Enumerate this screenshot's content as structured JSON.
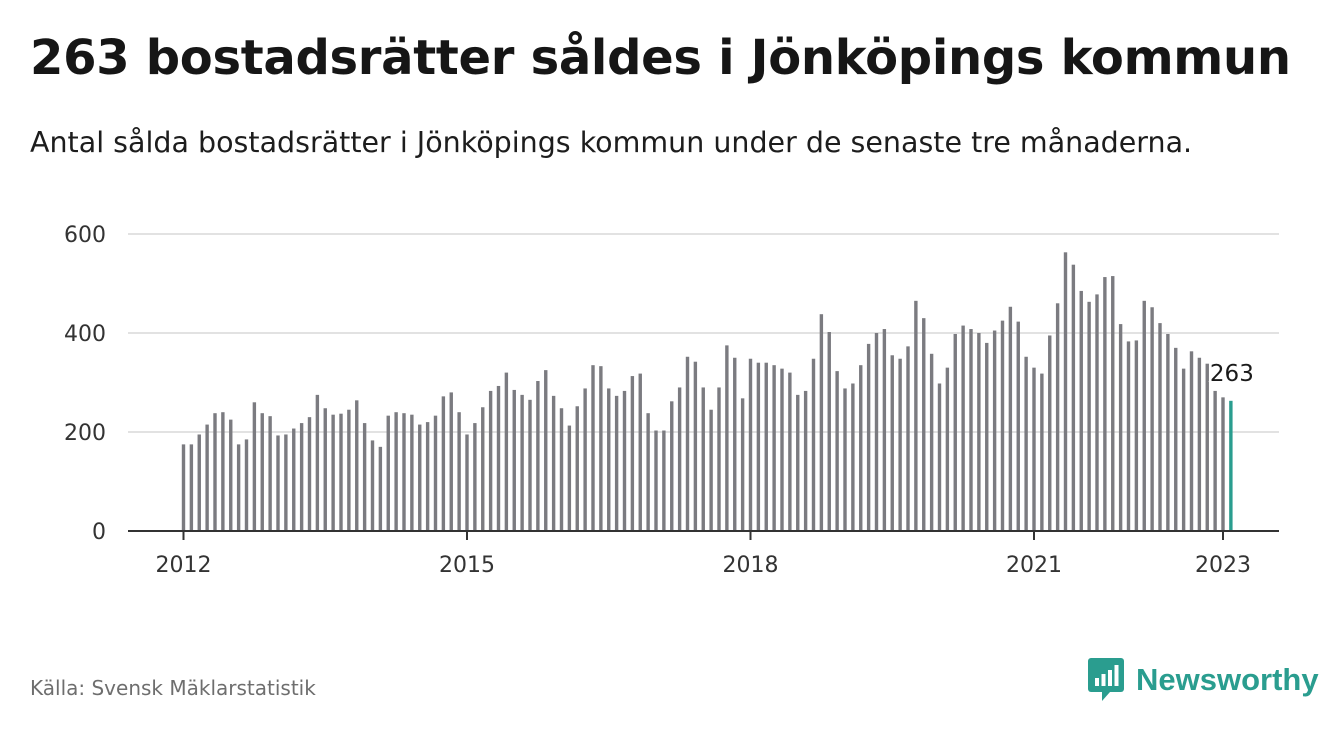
{
  "header": {
    "title": "263 bostadsrätter såldes i Jönköpings kommun",
    "subtitle": "Antal sålda bostadsrätter i Jönköpings kommun under de senaste tre månaderna."
  },
  "footer": {
    "source": "Källa: Svensk Mäklarstatistik",
    "brand": "Newsworthy",
    "brand_icon": "bar-chart-speech-bubble-icon"
  },
  "colors": {
    "bar": "#7b7b80",
    "highlight": "#2a9d8f",
    "grid": "#d9d9d9",
    "axis": "#333333"
  },
  "chart_data": {
    "type": "bar",
    "x_start": "2012-01",
    "x_tick_labels": [
      "2012",
      "2015",
      "2018",
      "2021",
      "2023"
    ],
    "ylim": [
      0,
      600
    ],
    "y_ticks": [
      0,
      200,
      400,
      600
    ],
    "grid": true,
    "highlight_label": "263",
    "values": [
      175,
      175,
      195,
      215,
      238,
      240,
      225,
      175,
      185,
      260,
      238,
      232,
      193,
      195,
      207,
      218,
      230,
      275,
      248,
      235,
      237,
      245,
      264,
      218,
      183,
      170,
      233,
      240,
      238,
      235,
      215,
      220,
      233,
      272,
      280,
      240,
      195,
      218,
      250,
      283,
      293,
      320,
      285,
      275,
      265,
      303,
      325,
      273,
      248,
      213,
      252,
      288,
      335,
      333,
      288,
      273,
      283,
      313,
      318,
      238,
      203,
      203,
      262,
      290,
      352,
      342,
      290,
      245,
      290,
      375,
      350,
      268,
      348,
      340,
      340,
      335,
      328,
      320,
      275,
      283,
      348,
      438,
      402,
      323,
      288,
      298,
      335,
      378,
      400,
      408,
      355,
      348,
      373,
      465,
      430,
      358,
      298,
      330,
      398,
      415,
      408,
      400,
      380,
      405,
      425,
      453,
      423,
      352,
      330,
      318,
      395,
      460,
      563,
      538,
      485,
      463,
      478,
      513,
      515,
      418,
      383,
      385,
      465,
      452,
      420,
      398,
      370,
      328,
      363,
      350,
      338,
      283,
      270,
      263
    ]
  }
}
